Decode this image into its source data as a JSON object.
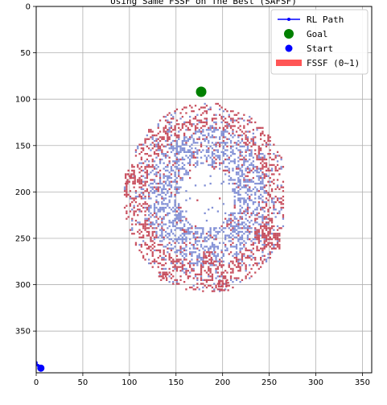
{
  "chart_data": {
    "type": "scatter",
    "title": "Using Same FSSF on The Best (SAFSF)",
    "xlim": [
      0,
      360
    ],
    "ylim": [
      395,
      0
    ],
    "y_inverted": true,
    "grid": true,
    "legend_position": "top-right",
    "x_ticks": [
      "0",
      "50",
      "100",
      "150",
      "200",
      "250",
      "300",
      "350"
    ],
    "y_ticks": [
      "0",
      "50",
      "100",
      "150",
      "200",
      "250",
      "300",
      "350"
    ],
    "x_tick_values": [
      0,
      50,
      100,
      150,
      200,
      250,
      300,
      350
    ],
    "y_tick_values": [
      0,
      50,
      100,
      150,
      200,
      250,
      300,
      350
    ],
    "legend": [
      {
        "label": "RL Path",
        "marker": "line-dot",
        "color": "#0000ff"
      },
      {
        "label": "Goal",
        "marker": "dot-large",
        "color": "#008000"
      },
      {
        "label": "Start",
        "marker": "dot",
        "color": "#0000ff"
      },
      {
        "label": "FSSF (0~1)",
        "marker": "rect",
        "color": "#ff5555"
      }
    ],
    "goal": {
      "x": 177,
      "y": 92,
      "color": "#008000"
    },
    "start": {
      "x": 5,
      "y": 390,
      "color": "#0000ff"
    },
    "rl_path": [
      [
        0,
        384
      ],
      [
        2,
        387
      ],
      [
        5,
        390
      ]
    ],
    "rl_path_color": "#0000ff",
    "fssf_colors": {
      "high": "#c8505f",
      "low": "#8391d6"
    },
    "fssf_map_description_region": {
      "x_range": [
        90,
        265
      ],
      "y_range": [
        100,
        310
      ]
    }
  }
}
